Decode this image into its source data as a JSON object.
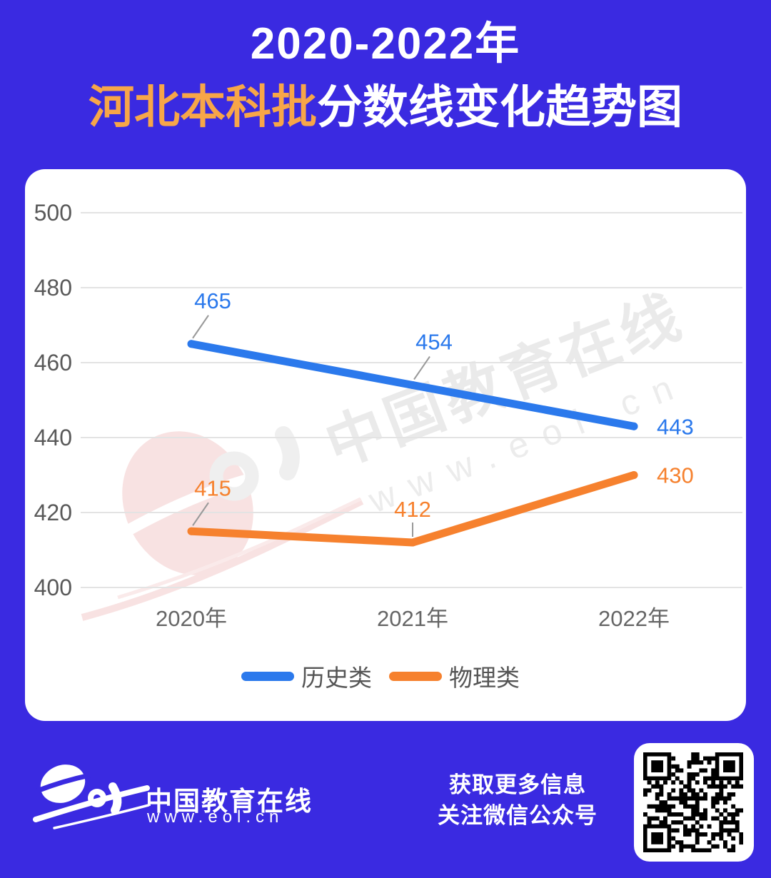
{
  "theme": {
    "page_bg": "#3a2ae1",
    "card_bg": "#ffffff",
    "title_highlight_color": "#f7a648",
    "blue_series_color": "#2b79ec",
    "orange_series_color": "#f6812e",
    "axis_label_color": "#595959",
    "xaxis_label_color": "#666666",
    "grid_color": "#e3e3e3",
    "leader_line_color": "#999999",
    "watermark_color": "#dfdfdf"
  },
  "title": {
    "line1": "2020-2022年",
    "line2_highlight": "河北本科批",
    "line2_rest": "分数线变化趋势图"
  },
  "chart_data": {
    "type": "line",
    "title": "2020-2022年河北本科批分数线变化趋势图",
    "categories": [
      "2020年",
      "2021年",
      "2022年"
    ],
    "series": [
      {
        "name": "历史类",
        "color": "#2b79ec",
        "values": [
          465,
          454,
          443
        ],
        "label_pos": [
          "diag",
          "diag",
          "right"
        ]
      },
      {
        "name": "物理类",
        "color": "#f6812e",
        "values": [
          415,
          412,
          430
        ],
        "label_pos": [
          "diag",
          "vert",
          "right"
        ]
      }
    ],
    "ylim": [
      400,
      500
    ],
    "yticks": [
      500,
      480,
      460,
      440,
      420,
      400
    ],
    "grid": true,
    "legend_position": "bottom"
  },
  "watermark": {
    "line1": "中国教育在线",
    "line2": "www.eol.cn"
  },
  "footer": {
    "brand_name": "中国教育在线",
    "brand_url": "www.eol.cn",
    "info_line1": "获取更多信息",
    "info_line2": "关注微信公众号"
  }
}
